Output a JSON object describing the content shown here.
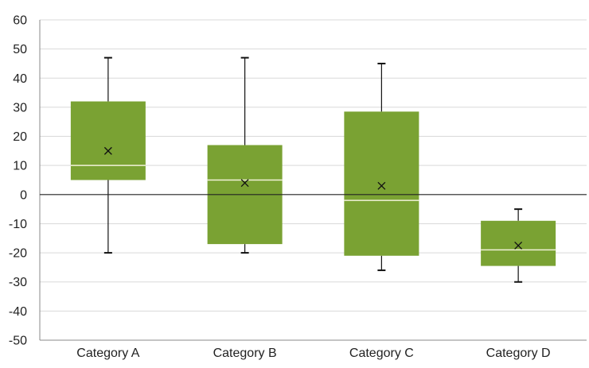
{
  "chart_data": {
    "type": "box",
    "title": "",
    "xlabel": "",
    "ylabel": "",
    "ylim": [
      -50,
      60
    ],
    "yticks": [
      60,
      50,
      40,
      30,
      20,
      10,
      0,
      -10,
      -20,
      -30,
      -40,
      -50
    ],
    "grid": true,
    "legend": "none",
    "categories": [
      "Category A",
      "Category B",
      "Category C",
      "Category D"
    ],
    "boxes": [
      {
        "min": -20,
        "q1": 5,
        "median": 10,
        "q3": 32,
        "max": 47,
        "mean": 15
      },
      {
        "min": -20,
        "q1": -17,
        "median": 5,
        "q3": 17,
        "max": 47,
        "mean": 4
      },
      {
        "min": -26,
        "q1": -21,
        "median": -2,
        "q3": 28.5,
        "max": 45,
        "mean": 3
      },
      {
        "min": -30,
        "q1": -24.5,
        "median": -19,
        "q3": -9,
        "max": -5,
        "mean": -17.5
      }
    ],
    "colors": {
      "box": "#7aa233",
      "median": "#f2f2d8",
      "whisker": "#111111",
      "grid": "#d9d9d9",
      "zero_line": "#222222",
      "axis": "#888888"
    }
  }
}
